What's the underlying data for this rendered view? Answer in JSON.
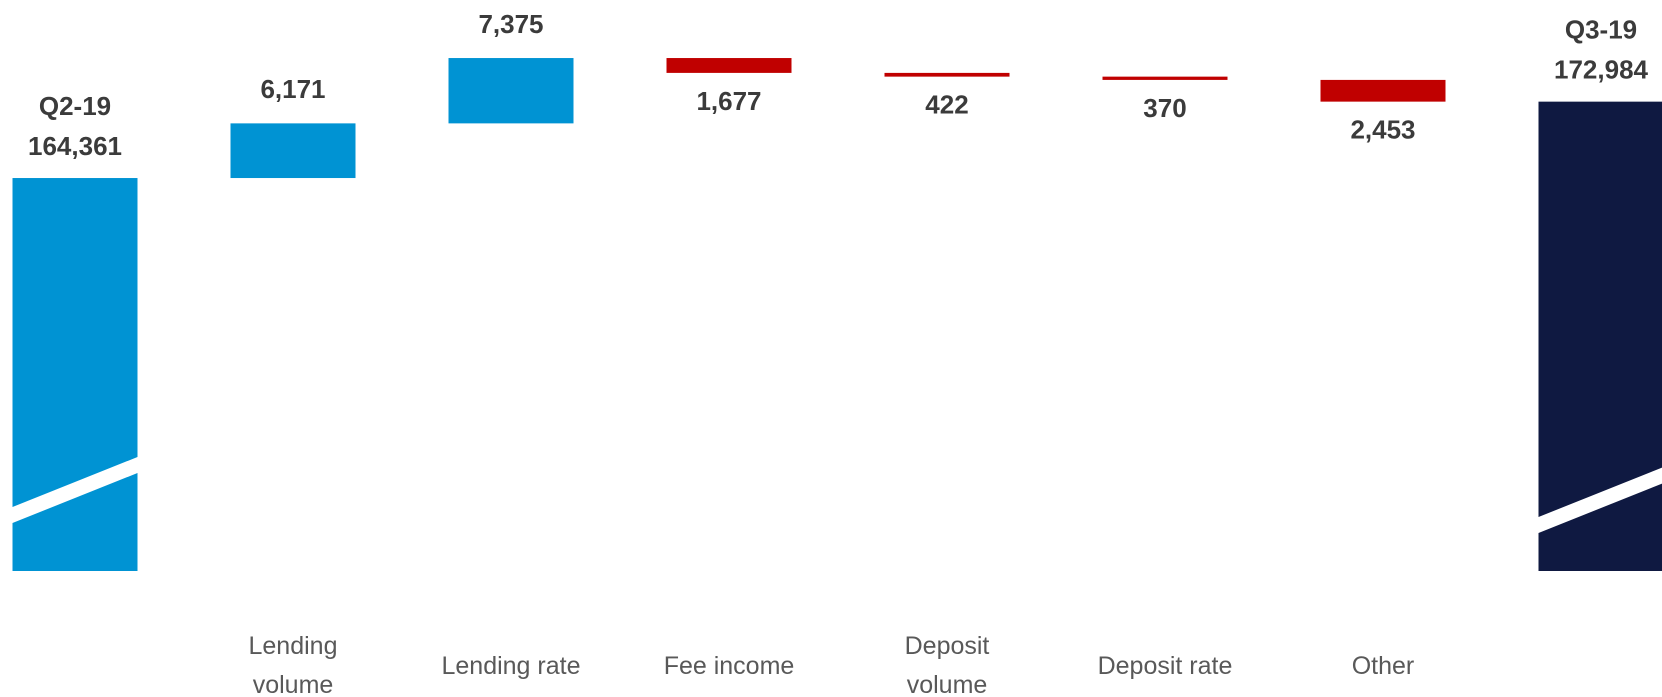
{
  "chart_data": {
    "type": "waterfall",
    "categories": [
      "Q2-19",
      "Lending volume",
      "Lending rate",
      "Fee income",
      "Deposit volume",
      "Deposit rate",
      "Other",
      "Q3-19"
    ],
    "values": [
      164361,
      6171,
      7375,
      -1677,
      -422,
      -370,
      -2453,
      172984
    ],
    "value_labels": [
      "164,361",
      "6,171",
      "7,375",
      "1,677",
      "422",
      "370",
      "2,453",
      "172,984"
    ],
    "colors": [
      "#0093d3",
      "#0093d3",
      "#0093d3",
      "#c00000",
      "#c00000",
      "#c00000",
      "#c00000",
      "#0f1941"
    ],
    "ylim": [
      120000,
      180000
    ]
  }
}
